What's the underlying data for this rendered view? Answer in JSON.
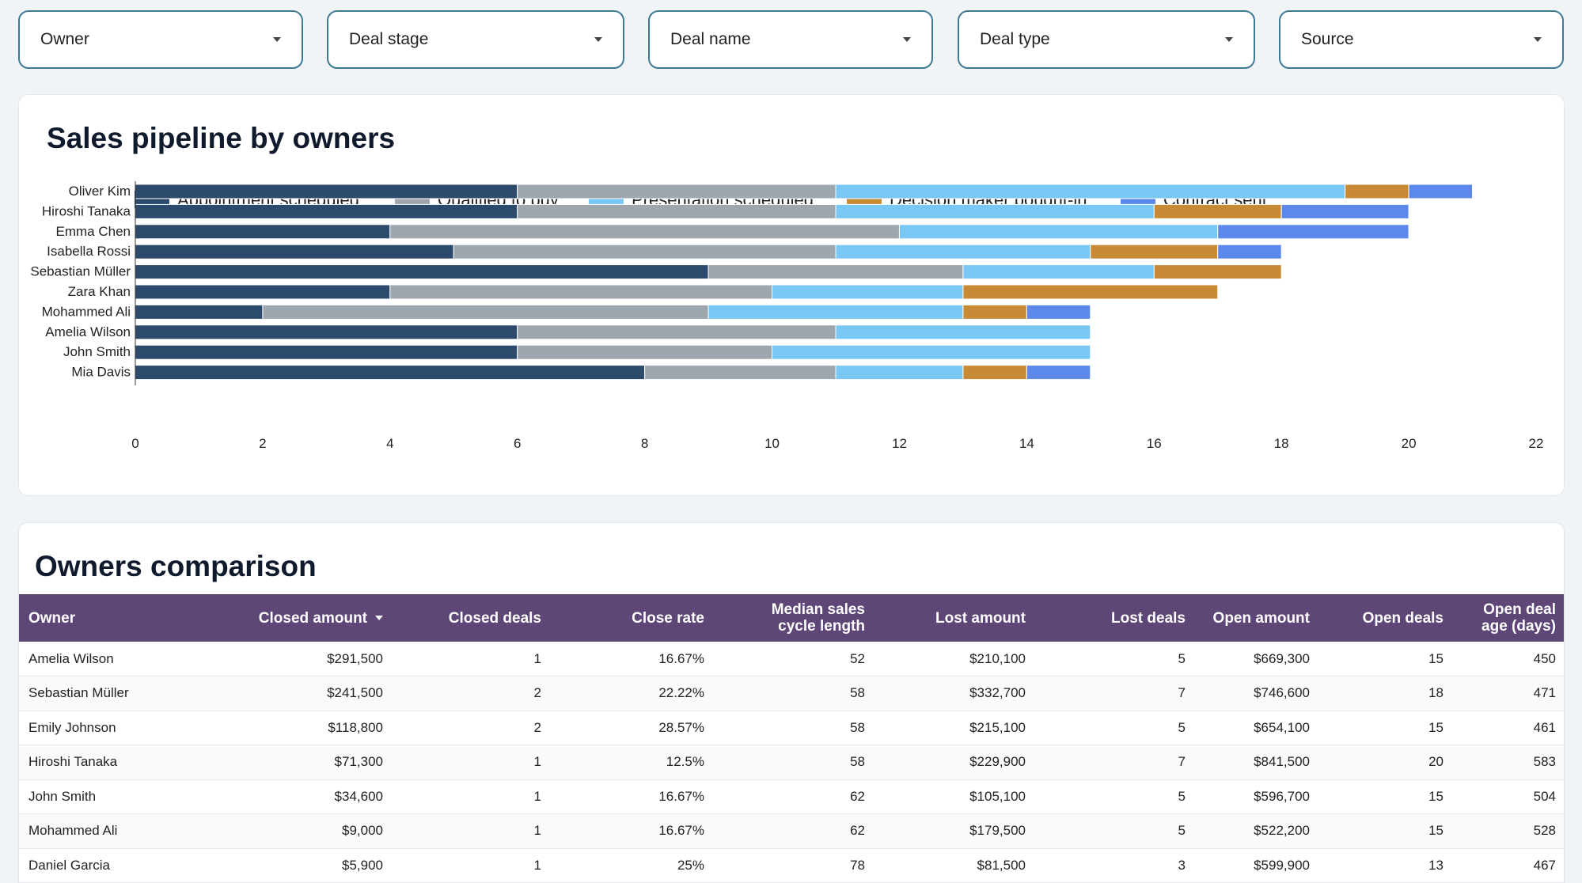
{
  "filters": {
    "owner": "Owner",
    "deal_stage": "Deal stage",
    "deal_name": "Deal name",
    "deal_type": "Deal type",
    "source": "Source"
  },
  "pipeline": {
    "title": "Sales pipeline by owners"
  },
  "comparison": {
    "title": "Owners comparison",
    "columns": {
      "owner": "Owner",
      "closed_amount": "Closed amount",
      "closed_deals": "Closed deals",
      "close_rate": "Close rate",
      "median_cycle_1": "Median sales",
      "median_cycle_2": "cycle length",
      "lost_amount": "Lost amount",
      "lost_deals": "Lost deals",
      "open_amount": "Open amount",
      "open_deals": "Open deals",
      "open_age_1": "Open deal",
      "open_age_2": "age (days)"
    },
    "rows": [
      {
        "owner": "Amelia Wilson",
        "closed_amount": "$291,500",
        "closed_deals": "1",
        "close_rate": "16.67%",
        "median_cycle": "52",
        "lost_amount": "$210,100",
        "lost_deals": "5",
        "open_amount": "$669,300",
        "open_deals": "15",
        "open_age": "450"
      },
      {
        "owner": "Sebastian Müller",
        "closed_amount": "$241,500",
        "closed_deals": "2",
        "close_rate": "22.22%",
        "median_cycle": "58",
        "lost_amount": "$332,700",
        "lost_deals": "7",
        "open_amount": "$746,600",
        "open_deals": "18",
        "open_age": "471"
      },
      {
        "owner": "Emily Johnson",
        "closed_amount": "$118,800",
        "closed_deals": "2",
        "close_rate": "28.57%",
        "median_cycle": "58",
        "lost_amount": "$215,100",
        "lost_deals": "5",
        "open_amount": "$654,100",
        "open_deals": "15",
        "open_age": "461"
      },
      {
        "owner": "Hiroshi Tanaka",
        "closed_amount": "$71,300",
        "closed_deals": "1",
        "close_rate": "12.5%",
        "median_cycle": "58",
        "lost_amount": "$229,900",
        "lost_deals": "7",
        "open_amount": "$841,500",
        "open_deals": "20",
        "open_age": "583"
      },
      {
        "owner": "John Smith",
        "closed_amount": "$34,600",
        "closed_deals": "1",
        "close_rate": "16.67%",
        "median_cycle": "62",
        "lost_amount": "$105,100",
        "lost_deals": "5",
        "open_amount": "$596,700",
        "open_deals": "15",
        "open_age": "504"
      },
      {
        "owner": "Mohammed Ali",
        "closed_amount": "$9,000",
        "closed_deals": "1",
        "close_rate": "16.67%",
        "median_cycle": "62",
        "lost_amount": "$179,500",
        "lost_deals": "5",
        "open_amount": "$522,200",
        "open_deals": "15",
        "open_age": "528"
      },
      {
        "owner": "Daniel Garcia",
        "closed_amount": "$5,900",
        "closed_deals": "1",
        "close_rate": "25%",
        "median_cycle": "78",
        "lost_amount": "$81,500",
        "lost_deals": "3",
        "open_amount": "$599,900",
        "open_deals": "13",
        "open_age": "467"
      }
    ]
  },
  "colors": {
    "filter_border": "#3e7a95",
    "table_header": "#5e4676"
  },
  "chart_data": {
    "type": "bar",
    "orientation": "horizontal",
    "stacked": true,
    "title": "Sales pipeline by owners",
    "categories": [
      "Oliver Kim",
      "Hiroshi Tanaka",
      "Emma Chen",
      "Isabella Rossi",
      "Sebastian Müller",
      "Zara Khan",
      "Mohammed Ali",
      "Amelia Wilson",
      "John Smith",
      "Mia Davis"
    ],
    "series": [
      {
        "name": "Appointment scheduled",
        "color": "#2c4a6b",
        "values": [
          6,
          6,
          4,
          5,
          9,
          4,
          2,
          6,
          6,
          8
        ]
      },
      {
        "name": "Qualified to buy",
        "color": "#9ea6ae",
        "values": [
          5,
          5,
          8,
          6,
          4,
          6,
          7,
          5,
          4,
          3
        ]
      },
      {
        "name": "Presentation scheduled",
        "color": "#79c7f4",
        "values": [
          8,
          5,
          5,
          4,
          3,
          3,
          4,
          4,
          5,
          2
        ]
      },
      {
        "name": "Decision maker bought-in",
        "color": "#c88a34",
        "values": [
          1,
          2,
          0,
          2,
          2,
          4,
          1,
          0,
          0,
          1
        ]
      },
      {
        "name": "Contract sent",
        "color": "#5b88ea",
        "values": [
          1,
          2,
          3,
          1,
          0,
          0,
          1,
          0,
          0,
          1
        ]
      }
    ],
    "xlim": [
      0,
      22
    ],
    "xticks": [
      "0",
      "2",
      "4",
      "6",
      "8",
      "10",
      "12",
      "14",
      "16",
      "18",
      "20",
      "22"
    ],
    "legend_position": "top"
  }
}
